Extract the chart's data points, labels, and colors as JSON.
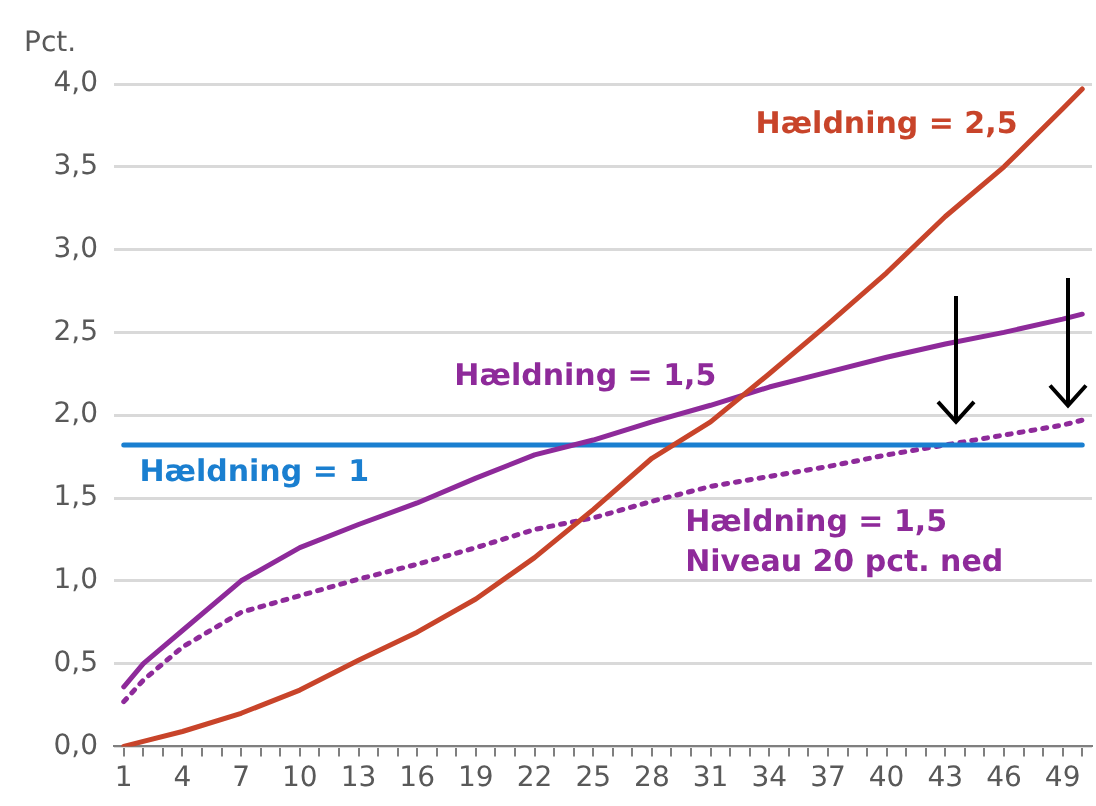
{
  "chart_data": {
    "type": "line",
    "ylabel": "Pct.",
    "x": [
      1,
      2,
      4,
      7,
      10,
      13,
      16,
      19,
      22,
      25,
      28,
      31,
      34,
      37,
      40,
      43,
      46,
      49,
      50
    ],
    "series": [
      {
        "name": "Hældning = 2,5",
        "color": "#c8442a",
        "values": [
          0,
          0.03,
          0.09,
          0.2,
          0.34,
          0.52,
          0.69,
          0.89,
          1.14,
          1.43,
          1.74,
          1.96,
          2.25,
          2.55,
          2.86,
          3.2,
          3.5,
          3.85,
          3.97
        ]
      },
      {
        "name": "Hældning = 1,5",
        "color": "#8e2a9a",
        "values": [
          0.36,
          0.5,
          0.7,
          1.0,
          1.2,
          1.34,
          1.47,
          1.62,
          1.76,
          1.85,
          1.96,
          2.06,
          2.17,
          2.26,
          2.35,
          2.43,
          2.5,
          2.58,
          2.61
        ]
      },
      {
        "name": "Hældning = 1",
        "color": "#1a7fd0",
        "x": [
          1,
          50
        ],
        "values": [
          1.82,
          1.82
        ]
      },
      {
        "name": "Hældning = 1,5\nNiveau 20 pct. ned",
        "color": "#8e2a9a",
        "line_style": "dotted",
        "values": [
          0.27,
          0.4,
          0.6,
          0.81,
          0.91,
          1.01,
          1.1,
          1.2,
          1.31,
          1.38,
          1.48,
          1.57,
          1.63,
          1.69,
          1.76,
          1.82,
          1.88,
          1.94,
          1.97
        ]
      }
    ],
    "xlim": [
      0.5,
      50.5
    ],
    "xticks": [
      1,
      {
        "value": 2,
        "label": null
      },
      {
        "value": 3,
        "label": null
      },
      4,
      {
        "value": 5,
        "label": null
      },
      {
        "value": 6,
        "label": null
      },
      7,
      {
        "value": 8,
        "label": null
      },
      {
        "value": 9,
        "label": null
      },
      10,
      {
        "value": 11,
        "label": null
      },
      {
        "value": 12,
        "label": null
      },
      13,
      {
        "value": 14,
        "label": null
      },
      {
        "value": 15,
        "label": null
      },
      16,
      {
        "value": 17,
        "label": null
      },
      {
        "value": 18,
        "label": null
      },
      19,
      {
        "value": 20,
        "label": null
      },
      {
        "value": 21,
        "label": null
      },
      22,
      {
        "value": 23,
        "label": null
      },
      {
        "value": 24,
        "label": null
      },
      25,
      {
        "value": 26,
        "label": null
      },
      {
        "value": 27,
        "label": null
      },
      28,
      {
        "value": 29,
        "label": null
      },
      {
        "value": 30,
        "label": null
      },
      31,
      {
        "value": 32,
        "label": null
      },
      {
        "value": 33,
        "label": null
      },
      34,
      {
        "value": 35,
        "label": null
      },
      {
        "value": 36,
        "label": null
      },
      37,
      {
        "value": 38,
        "label": null
      },
      {
        "value": 39,
        "label": null
      },
      40,
      {
        "value": 41,
        "label": null
      },
      {
        "value": 42,
        "label": null
      },
      43,
      {
        "value": 44,
        "label": null
      },
      {
        "value": 45,
        "label": null
      },
      46,
      {
        "value": 47,
        "label": null
      },
      {
        "value": 48,
        "label": null
      },
      49,
      {
        "value": 50,
        "label": null
      }
    ],
    "ylim": [
      0,
      4
    ],
    "yticks": [
      {
        "value": 0,
        "label": "0,0"
      },
      {
        "value": 0.5,
        "label": "0,5"
      },
      {
        "value": 1,
        "label": "1,0"
      },
      {
        "value": 1.5,
        "label": "1,5"
      },
      {
        "value": 2,
        "label": "2,0"
      },
      {
        "value": 2.5,
        "label": "2,5"
      },
      {
        "value": 3,
        "label": "3,0"
      },
      {
        "value": 3.5,
        "label": "3,5"
      },
      {
        "value": 4,
        "label": "4,0"
      }
    ],
    "grid": "y",
    "legend": false,
    "marker": "none"
  }
}
